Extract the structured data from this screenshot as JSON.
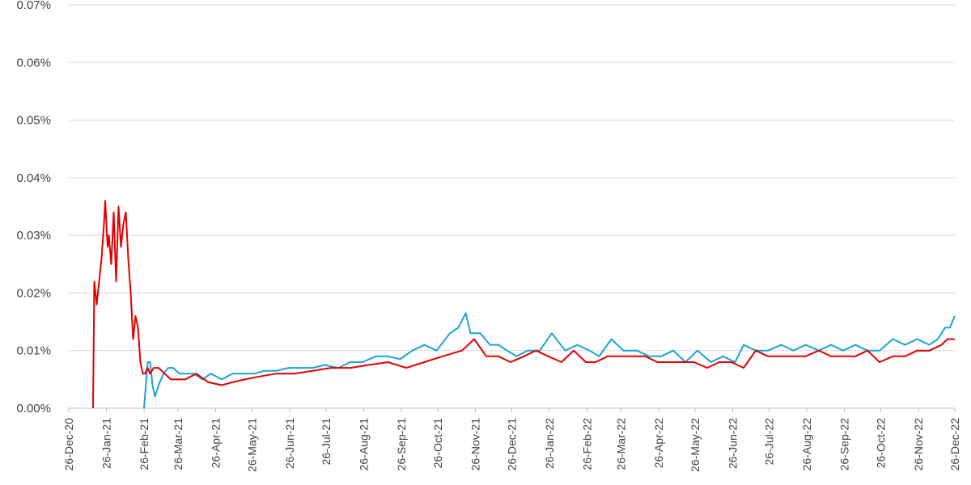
{
  "chart_data": {
    "type": "line",
    "title": "",
    "xlabel": "",
    "ylabel": "",
    "ylim": [
      0,
      0.0007
    ],
    "xlim": [
      "2020-12-26",
      "2022-12-26"
    ],
    "y_ticks": [
      "0.00%",
      "0.01%",
      "0.02%",
      "0.03%",
      "0.04%",
      "0.05%",
      "0.06%",
      "0.07%"
    ],
    "y_tick_values": [
      0,
      0.0001,
      0.0002,
      0.0003,
      0.0004,
      0.0005,
      0.0006,
      0.0007
    ],
    "x_ticks": [
      "26-Dec-20",
      "26-Jan-21",
      "26-Feb-21",
      "26-Mar-21",
      "26-Apr-21",
      "26-May-21",
      "26-Jun-21",
      "26-Jul-21",
      "26-Aug-21",
      "26-Sep-21",
      "26-Oct-21",
      "26-Nov-21",
      "26-Dec-21",
      "26-Jan-22",
      "26-Feb-22",
      "26-Mar-22",
      "26-Apr-22",
      "26-May-22",
      "26-Jun-22",
      "26-Jul-22",
      "26-Aug-22",
      "26-Sep-22",
      "26-Oct-22",
      "26-Nov-22",
      "26-Dec-22"
    ],
    "x_tick_dates": [
      "2020-12-26",
      "2021-01-26",
      "2021-02-26",
      "2021-03-26",
      "2021-04-26",
      "2021-05-26",
      "2021-06-26",
      "2021-07-26",
      "2021-08-26",
      "2021-09-26",
      "2021-10-26",
      "2021-11-26",
      "2021-12-26",
      "2022-01-26",
      "2022-02-26",
      "2022-03-26",
      "2022-04-26",
      "2022-05-26",
      "2022-06-26",
      "2022-07-26",
      "2022-08-26",
      "2022-09-26",
      "2022-10-26",
      "2022-11-26",
      "2022-12-26"
    ],
    "grid": true,
    "legend": "none",
    "series": [
      {
        "color": "#1aa3d4",
        "x": [
          "2021-02-26",
          "2021-03-01",
          "2021-03-03",
          "2021-03-05",
          "2021-03-07",
          "2021-03-10",
          "2021-03-14",
          "2021-03-18",
          "2021-03-22",
          "2021-03-27",
          "2021-04-01",
          "2021-04-08",
          "2021-04-15",
          "2021-04-22",
          "2021-05-01",
          "2021-05-10",
          "2021-05-20",
          "2021-05-28",
          "2021-06-05",
          "2021-06-15",
          "2021-06-25",
          "2021-07-05",
          "2021-07-15",
          "2021-07-25",
          "2021-08-05",
          "2021-08-15",
          "2021-08-25",
          "2021-09-05",
          "2021-09-15",
          "2021-09-25",
          "2021-10-05",
          "2021-10-15",
          "2021-10-25",
          "2021-11-05",
          "2021-11-12",
          "2021-11-18",
          "2021-11-22",
          "2021-11-30",
          "2021-12-08",
          "2021-12-15",
          "2021-12-22",
          "2021-12-30",
          "2022-01-08",
          "2022-01-18",
          "2022-01-28",
          "2022-02-08",
          "2022-02-18",
          "2022-02-28",
          "2022-03-08",
          "2022-03-18",
          "2022-03-28",
          "2022-04-08",
          "2022-04-18",
          "2022-04-28",
          "2022-05-08",
          "2022-05-18",
          "2022-05-28",
          "2022-06-08",
          "2022-06-18",
          "2022-06-28",
          "2022-07-05",
          "2022-07-15",
          "2022-07-25",
          "2022-08-05",
          "2022-08-15",
          "2022-08-25",
          "2022-09-05",
          "2022-09-15",
          "2022-09-25",
          "2022-10-05",
          "2022-10-15",
          "2022-10-25",
          "2022-11-05",
          "2022-11-15",
          "2022-11-25",
          "2022-12-05",
          "2022-12-12",
          "2022-12-18",
          "2022-12-22",
          "2022-12-26"
        ],
        "y": [
          0.0,
          8e-05,
          8e-05,
          4e-05,
          2e-05,
          4e-05,
          6e-05,
          7e-05,
          7e-05,
          6e-05,
          6e-05,
          6e-05,
          5e-05,
          6e-05,
          5e-05,
          6e-05,
          6e-05,
          6e-05,
          6.5e-05,
          6.5e-05,
          7e-05,
          7e-05,
          7e-05,
          7.5e-05,
          7e-05,
          8e-05,
          8e-05,
          9e-05,
          9e-05,
          8.5e-05,
          0.0001,
          0.00011,
          0.0001,
          0.00013,
          0.00014,
          0.000165,
          0.00013,
          0.00013,
          0.00011,
          0.00011,
          0.0001,
          9e-05,
          0.0001,
          0.0001,
          0.00013,
          0.0001,
          0.00011,
          0.0001,
          9e-05,
          0.00012,
          0.0001,
          0.0001,
          9e-05,
          9e-05,
          0.0001,
          8e-05,
          0.0001,
          8e-05,
          9e-05,
          8e-05,
          0.00011,
          0.0001,
          0.0001,
          0.00011,
          0.0001,
          0.00011,
          0.0001,
          0.00011,
          0.0001,
          0.00011,
          0.0001,
          0.0001,
          0.00012,
          0.00011,
          0.00012,
          0.00011,
          0.00012,
          0.00014,
          0.00014,
          0.00016
        ]
      },
      {
        "color": "#e30000",
        "x": [
          "2021-01-15",
          "2021-01-16",
          "2021-01-18",
          "2021-01-20",
          "2021-01-22",
          "2021-01-24",
          "2021-01-25",
          "2021-01-27",
          "2021-01-28",
          "2021-01-30",
          "2021-02-01",
          "2021-02-03",
          "2021-02-05",
          "2021-02-07",
          "2021-02-09",
          "2021-02-11",
          "2021-02-13",
          "2021-02-15",
          "2021-02-17",
          "2021-02-19",
          "2021-02-21",
          "2021-02-23",
          "2021-02-25",
          "2021-02-27",
          "2021-03-01",
          "2021-03-03",
          "2021-03-06",
          "2021-03-10",
          "2021-03-15",
          "2021-03-20",
          "2021-03-25",
          "2021-04-01",
          "2021-04-10",
          "2021-04-20",
          "2021-05-01",
          "2021-05-10",
          "2021-05-20",
          "2021-06-01",
          "2021-06-15",
          "2021-06-30",
          "2021-07-15",
          "2021-07-30",
          "2021-08-15",
          "2021-08-30",
          "2021-09-15",
          "2021-09-30",
          "2021-10-15",
          "2021-10-30",
          "2021-11-15",
          "2021-11-25",
          "2021-12-05",
          "2021-12-15",
          "2021-12-25",
          "2022-01-05",
          "2022-01-15",
          "2022-01-25",
          "2022-02-05",
          "2022-02-15",
          "2022-02-25",
          "2022-03-05",
          "2022-03-15",
          "2022-03-25",
          "2022-04-05",
          "2022-04-15",
          "2022-04-25",
          "2022-05-05",
          "2022-05-15",
          "2022-05-25",
          "2022-06-05",
          "2022-06-15",
          "2022-06-25",
          "2022-07-05",
          "2022-07-15",
          "2022-07-25",
          "2022-08-05",
          "2022-08-15",
          "2022-08-25",
          "2022-09-05",
          "2022-09-15",
          "2022-09-25",
          "2022-10-05",
          "2022-10-15",
          "2022-10-25",
          "2022-11-05",
          "2022-11-15",
          "2022-11-25",
          "2022-12-05",
          "2022-12-15",
          "2022-12-20",
          "2022-12-26"
        ],
        "y": [
          0.0,
          0.00022,
          0.00018,
          0.00022,
          0.00026,
          0.00032,
          0.00036,
          0.00028,
          0.0003,
          0.00025,
          0.00034,
          0.00022,
          0.00035,
          0.00028,
          0.00032,
          0.00034,
          0.00026,
          0.0002,
          0.00012,
          0.00016,
          0.00014,
          8e-05,
          6e-05,
          6e-05,
          7e-05,
          6e-05,
          7e-05,
          7e-05,
          6e-05,
          5e-05,
          5e-05,
          5e-05,
          6e-05,
          4.5e-05,
          4e-05,
          4.5e-05,
          5e-05,
          5.5e-05,
          6e-05,
          6e-05,
          6.5e-05,
          7e-05,
          7e-05,
          7.5e-05,
          8e-05,
          7e-05,
          8e-05,
          9e-05,
          0.0001,
          0.00012,
          9e-05,
          9e-05,
          8e-05,
          9e-05,
          0.0001,
          9e-05,
          8e-05,
          0.0001,
          8e-05,
          8e-05,
          9e-05,
          9e-05,
          9e-05,
          9e-05,
          8e-05,
          8e-05,
          8e-05,
          8e-05,
          7e-05,
          8e-05,
          8e-05,
          7e-05,
          0.0001,
          9e-05,
          9e-05,
          9e-05,
          9e-05,
          0.0001,
          9e-05,
          9e-05,
          9e-05,
          0.0001,
          8e-05,
          9e-05,
          9e-05,
          0.0001,
          0.0001,
          0.00011,
          0.00012,
          0.00012
        ]
      }
    ]
  }
}
